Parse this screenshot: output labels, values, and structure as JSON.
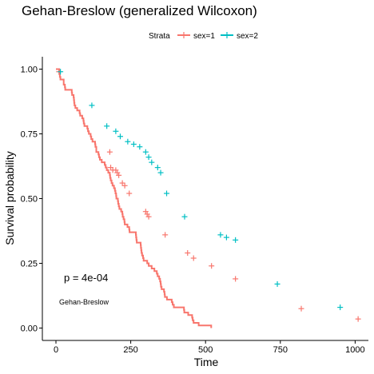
{
  "chart_data": {
    "type": "line",
    "title": "Gehan-Breslow (generalized Wilcoxon)",
    "xlabel": "Time",
    "ylabel": "Survival probability",
    "xlim": [
      0,
      1022
    ],
    "ylim": [
      0,
      1
    ],
    "x_ticks": [
      0,
      250,
      500,
      750,
      1000
    ],
    "y_ticks": [
      0,
      0.25,
      0.5,
      0.75,
      1
    ],
    "x_tick_labels": [
      "0",
      "250",
      "500",
      "750",
      "1000"
    ],
    "y_tick_labels": [
      "0.00",
      "0.25",
      "0.50",
      "0.75",
      "1.00"
    ],
    "grid": false,
    "legend": {
      "title": "Strata",
      "placement": "top",
      "entries": [
        "sex=1",
        "sex=2"
      ]
    },
    "annotations": {
      "pvalue": "p = 4e-04",
      "method": "Gehan-Breslow"
    },
    "series": [
      {
        "name": "sex=1",
        "color": "#F8766D",
        "steps": [
          [
            0,
            1.0
          ],
          [
            11,
            0.99
          ],
          [
            12,
            0.98
          ],
          [
            13,
            0.97
          ],
          [
            15,
            0.96
          ],
          [
            26,
            0.94
          ],
          [
            30,
            0.93
          ],
          [
            31,
            0.92
          ],
          [
            53,
            0.91
          ],
          [
            54,
            0.9
          ],
          [
            59,
            0.89
          ],
          [
            60,
            0.88
          ],
          [
            61,
            0.87
          ],
          [
            62,
            0.86
          ],
          [
            65,
            0.85
          ],
          [
            71,
            0.84
          ],
          [
            79,
            0.83
          ],
          [
            81,
            0.82
          ],
          [
            88,
            0.81
          ],
          [
            92,
            0.8
          ],
          [
            93,
            0.79
          ],
          [
            95,
            0.78
          ],
          [
            105,
            0.77
          ],
          [
            107,
            0.76
          ],
          [
            110,
            0.75
          ],
          [
            116,
            0.74
          ],
          [
            118,
            0.73
          ],
          [
            122,
            0.72
          ],
          [
            131,
            0.71
          ],
          [
            132,
            0.7
          ],
          [
            135,
            0.68
          ],
          [
            142,
            0.67
          ],
          [
            144,
            0.66
          ],
          [
            147,
            0.65
          ],
          [
            153,
            0.64
          ],
          [
            163,
            0.63
          ],
          [
            166,
            0.62
          ],
          [
            170,
            0.61
          ],
          [
            175,
            0.6
          ],
          [
            180,
            0.59
          ],
          [
            181,
            0.58
          ],
          [
            183,
            0.57
          ],
          [
            186,
            0.56
          ],
          [
            189,
            0.55
          ],
          [
            194,
            0.54
          ],
          [
            197,
            0.53
          ],
          [
            199,
            0.52
          ],
          [
            201,
            0.51
          ],
          [
            202,
            0.5
          ],
          [
            207,
            0.49
          ],
          [
            208,
            0.48
          ],
          [
            210,
            0.47
          ],
          [
            212,
            0.46
          ],
          [
            218,
            0.45
          ],
          [
            222,
            0.44
          ],
          [
            223,
            0.43
          ],
          [
            226,
            0.42
          ],
          [
            229,
            0.41
          ],
          [
            230,
            0.4
          ],
          [
            239,
            0.39
          ],
          [
            245,
            0.38
          ],
          [
            246,
            0.37
          ],
          [
            267,
            0.36
          ],
          [
            268,
            0.35
          ],
          [
            269,
            0.34
          ],
          [
            270,
            0.33
          ],
          [
            283,
            0.32
          ],
          [
            284,
            0.31
          ],
          [
            285,
            0.3
          ],
          [
            286,
            0.29
          ],
          [
            288,
            0.28
          ],
          [
            291,
            0.27
          ],
          [
            293,
            0.26
          ],
          [
            305,
            0.25
          ],
          [
            310,
            0.24
          ],
          [
            320,
            0.23
          ],
          [
            329,
            0.22
          ],
          [
            337,
            0.21
          ],
          [
            340,
            0.2
          ],
          [
            345,
            0.19
          ],
          [
            348,
            0.18
          ],
          [
            350,
            0.17
          ],
          [
            351,
            0.16
          ],
          [
            353,
            0.15
          ],
          [
            361,
            0.14
          ],
          [
            363,
            0.13
          ],
          [
            364,
            0.12
          ],
          [
            371,
            0.11
          ],
          [
            387,
            0.1
          ],
          [
            390,
            0.09
          ],
          [
            394,
            0.08
          ],
          [
            428,
            0.07
          ],
          [
            429,
            0.06
          ],
          [
            442,
            0.05
          ],
          [
            455,
            0.04
          ],
          [
            457,
            0.03
          ],
          [
            460,
            0.02
          ],
          [
            477,
            0.01
          ],
          [
            519,
            0.0
          ]
        ],
        "censored": [
          [
            10,
            0.99
          ],
          [
            180,
            0.68
          ],
          [
            183,
            0.62
          ],
          [
            190,
            0.61
          ],
          [
            200,
            0.61
          ],
          [
            205,
            0.6
          ],
          [
            210,
            0.59
          ],
          [
            222,
            0.56
          ],
          [
            230,
            0.55
          ],
          [
            245,
            0.52
          ],
          [
            300,
            0.45
          ],
          [
            305,
            0.44
          ],
          [
            310,
            0.43
          ],
          [
            365,
            0.36
          ],
          [
            440,
            0.29
          ],
          [
            460,
            0.27
          ],
          [
            520,
            0.24
          ],
          [
            600,
            0.19
          ],
          [
            820,
            0.075
          ],
          [
            1010,
            0.035
          ]
        ]
      },
      {
        "name": "sex=2",
        "color": "#00BFC4",
        "censored": [
          [
            15,
            0.99
          ],
          [
            120,
            0.86
          ],
          [
            170,
            0.78
          ],
          [
            200,
            0.76
          ],
          [
            215,
            0.74
          ],
          [
            240,
            0.72
          ],
          [
            260,
            0.71
          ],
          [
            280,
            0.7
          ],
          [
            300,
            0.68
          ],
          [
            310,
            0.66
          ],
          [
            320,
            0.64
          ],
          [
            340,
            0.62
          ],
          [
            350,
            0.6
          ],
          [
            370,
            0.52
          ],
          [
            430,
            0.43
          ],
          [
            550,
            0.36
          ],
          [
            570,
            0.35
          ],
          [
            600,
            0.34
          ],
          [
            740,
            0.17
          ],
          [
            950,
            0.08
          ]
        ]
      }
    ]
  }
}
